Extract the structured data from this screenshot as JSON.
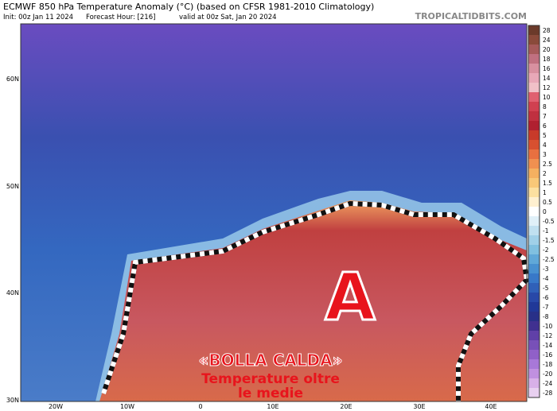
{
  "header": {
    "title": "ECMWF 850 hPa Temperature Anomaly (°C) (based on CFSR 1981-2010 Climatology)",
    "init": "Init: 00z Jan 11 2024",
    "forecast": "Forecast Hour: [216]",
    "valid": "valid at 00z Sat, Jan 20 2024",
    "site": "TROPICALTIDBITS.COM"
  },
  "map": {
    "lat_labels": [
      "60N",
      "50N",
      "40N",
      "30N"
    ],
    "lon_labels": [
      "20W",
      "10W",
      "0",
      "10E",
      "20E",
      "30E",
      "40E"
    ]
  },
  "colorbar": {
    "ticks": [
      28,
      24,
      20,
      18,
      16,
      14,
      12,
      10,
      8,
      7,
      6,
      5,
      4,
      3,
      2.5,
      2,
      1.5,
      1,
      0.5,
      0,
      -0.5,
      -1,
      -1.5,
      -2,
      -2.5,
      -3,
      -4,
      -5,
      -6,
      -7,
      -8,
      -10,
      -12,
      -14,
      -16,
      -18,
      -20,
      -24,
      -28
    ],
    "colors": [
      "#6b3a2a",
      "#8a4a3a",
      "#a65a5a",
      "#c07080",
      "#d890a0",
      "#e8a8b8",
      "#f0c0c8",
      "#e06070",
      "#d04050",
      "#c03040",
      "#b02030",
      "#c83a2a",
      "#d85030",
      "#e87040",
      "#f09050",
      "#f5b060",
      "#f8c878",
      "#fce0a0",
      "#fff0d0",
      "#ffffff",
      "#e0f0f8",
      "#c0e0f0",
      "#a0d0e8",
      "#80c0e0",
      "#60a8d8",
      "#4890d0",
      "#3878c8",
      "#3060b8",
      "#2848a8",
      "#203898",
      "#283088",
      "#403090",
      "#6040a8",
      "#7850b8",
      "#9060c8",
      "#a878d8",
      "#c090e0",
      "#d8b0e8",
      "#e8d0f0"
    ]
  },
  "annotations": {
    "marker": "A",
    "headline": "«BOLLA CALDA»",
    "line1": "Temperature oltre",
    "line2": "le medie"
  }
}
